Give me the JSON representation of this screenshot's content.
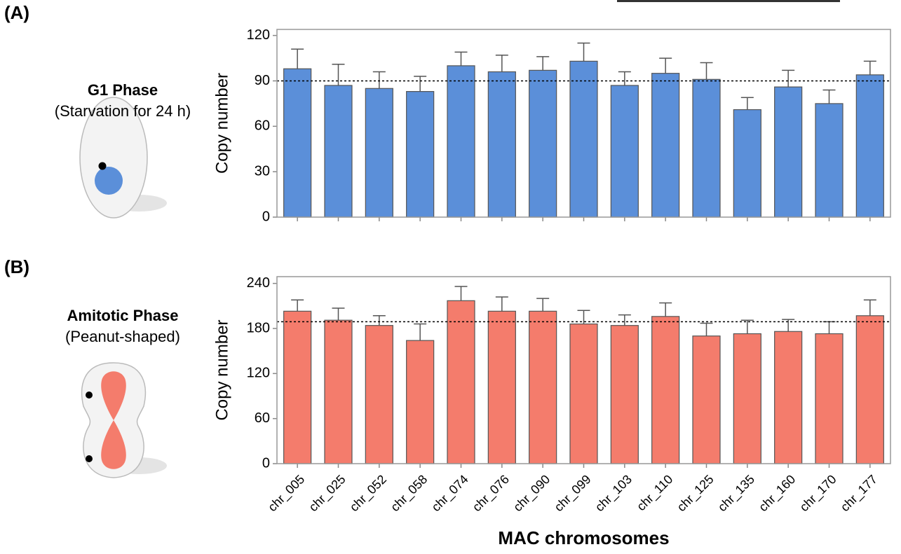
{
  "chart_data": [
    {
      "type": "bar",
      "panel_label": "(A)",
      "phase_title": "G1 Phase",
      "phase_subtitle": "(Starvation for 24 h)",
      "ylabel": "Copy number",
      "categories": [
        null,
        null,
        null,
        null,
        null,
        null,
        null,
        null,
        null,
        null,
        null,
        null,
        null,
        null,
        null
      ],
      "values": [
        98,
        87,
        85,
        83,
        100,
        96,
        97,
        103,
        87,
        95,
        91,
        71,
        86,
        75,
        94
      ],
      "errors": [
        13,
        14,
        11,
        10,
        9,
        11,
        9,
        12,
        9,
        10,
        11,
        8,
        11,
        9,
        9
      ],
      "color": "#5b8fd9",
      "reference_line": 90,
      "ylim": [
        0,
        124
      ],
      "yticks": [
        0,
        30,
        60,
        90,
        120
      ]
    },
    {
      "type": "bar",
      "panel_label": "(B)",
      "phase_title": "Amitotic Phase",
      "phase_subtitle": "(Peanut-shaped)",
      "ylabel": "Copy number",
      "xlabel": "MAC chromosomes",
      "categories": [
        "chr_005",
        "chr_025",
        "chr_052",
        "chr_058",
        "chr_074",
        "chr_076",
        "chr_090",
        "chr_099",
        "chr_103",
        "chr_110",
        "chr_125",
        "chr_135",
        "chr_160",
        "chr_170",
        "chr_177"
      ],
      "values": [
        203,
        191,
        184,
        164,
        217,
        203,
        203,
        186,
        184,
        196,
        170,
        173,
        176,
        173,
        197
      ],
      "errors": [
        15,
        16,
        13,
        22,
        19,
        19,
        17,
        18,
        14,
        18,
        17,
        18,
        16,
        16,
        21
      ],
      "color": "#f47c6c",
      "reference_line": 189,
      "ylim": [
        0,
        249
      ],
      "yticks": [
        0,
        60,
        120,
        180,
        240
      ]
    }
  ]
}
